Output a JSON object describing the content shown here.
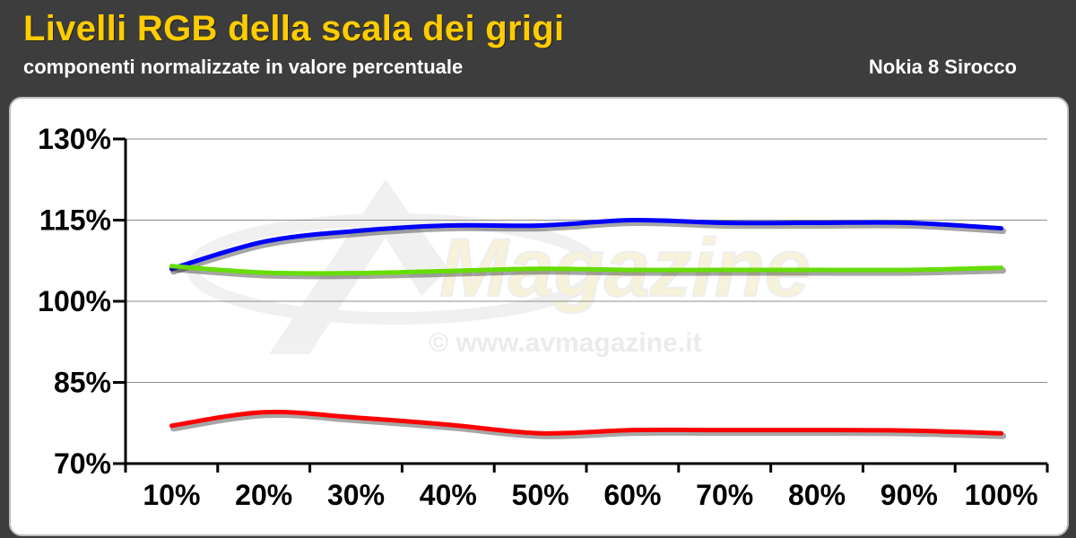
{
  "header": {
    "title": "Livelli RGB della scala dei grigi",
    "subtitle": "componenti normalizzate in valore percentuale",
    "device": "Nokia 8 Sirocco"
  },
  "watermark": {
    "logo_text": "Magazine",
    "url_text": "© www.avmagazine.it"
  },
  "colors": {
    "header_bg": "#3d3d3d",
    "title": "#ffcc00",
    "red": "#ff0000",
    "green": "#66dd00",
    "blue": "#0000ff"
  },
  "chart_data": {
    "type": "line",
    "categories": [
      "10%",
      "20%",
      "30%",
      "40%",
      "50%",
      "60%",
      "70%",
      "80%",
      "90%",
      "100%"
    ],
    "y_ticks": [
      "130%",
      "115%",
      "100%",
      "85%",
      "70%"
    ],
    "y_tick_values": [
      130,
      115,
      100,
      85,
      70
    ],
    "ylim": [
      70,
      130
    ],
    "grid": true,
    "legend": "none",
    "series": [
      {
        "color": "#0000ff",
        "values": [
          106,
          111,
          113,
          114,
          114,
          115,
          114.5,
          114.5,
          114.5,
          113.5
        ]
      },
      {
        "color": "#66dd00",
        "values": [
          106.5,
          105.3,
          105.2,
          105.6,
          106,
          105.8,
          105.8,
          105.8,
          105.8,
          106.2
        ]
      },
      {
        "color": "#ff0000",
        "values": [
          77,
          79.5,
          78.5,
          77.2,
          75.6,
          76.2,
          76.2,
          76.2,
          76.1,
          75.6
        ]
      }
    ]
  }
}
